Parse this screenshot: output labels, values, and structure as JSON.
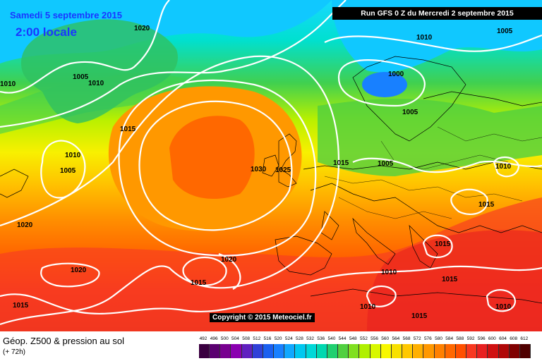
{
  "header": {
    "date": "Samedi 5 septembre 2015",
    "time": "2:00 locale",
    "run": "Run GFS 0 Z du Mercredi 2 septembre 2015"
  },
  "copyright": "Copyright © 2015 Meteociel.fr",
  "footer": {
    "title": "Géop. Z500 & pression au sol",
    "subtitle": "(+ 72h)"
  },
  "isobar_labels": [
    "1020",
    "1010",
    "1005",
    "1010",
    "1015",
    "1000",
    "1005",
    "1010",
    "1005",
    "1010",
    "1005",
    "1020",
    "1015",
    "1030",
    "1025",
    "1015",
    "1005",
    "1010",
    "1015",
    "1020",
    "1020",
    "1015",
    "1015",
    "1010",
    "1015",
    "1015",
    "1010",
    "1010"
  ],
  "scale": {
    "labels": [
      "492",
      "496",
      "500",
      "504",
      "508",
      "512",
      "516",
      "520",
      "524",
      "528",
      "532",
      "536",
      "540",
      "544",
      "548",
      "552",
      "556",
      "560",
      "564",
      "568",
      "572",
      "576",
      "580",
      "584",
      "588",
      "592",
      "596",
      "600",
      "604",
      "608",
      "612"
    ],
    "colors": [
      "#3a0040",
      "#5a0070",
      "#780090",
      "#8a00b0",
      "#6020c0",
      "#3040d8",
      "#1a60f0",
      "#1880ff",
      "#10a8ff",
      "#00c8f0",
      "#00d8d8",
      "#00d8b0",
      "#20d070",
      "#50d040",
      "#80e020",
      "#b0f000",
      "#d8f800",
      "#f8f800",
      "#f8e000",
      "#ffc800",
      "#ffb000",
      "#ff9800",
      "#ff8000",
      "#ff6800",
      "#ff5000",
      "#f83820",
      "#e82020",
      "#d01010",
      "#b00808",
      "#800000",
      "#500000"
    ]
  }
}
